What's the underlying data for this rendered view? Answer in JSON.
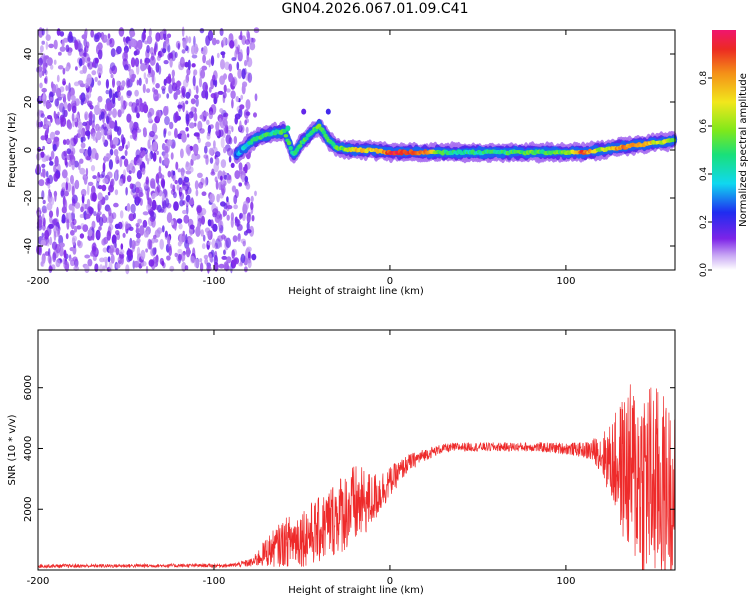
{
  "title": "GN04.2026.067.01.09.C41",
  "colors": {
    "spectrogram_low": "#7b22e6",
    "spectrogram_mid": "#19e07a",
    "spectrogram_high": "#e8202a",
    "snr_line": "#ee2a2a"
  },
  "chart_data": [
    {
      "type": "heatmap",
      "name": "spectrogram",
      "xlabel": "Height of straight line (km)",
      "ylabel": "Frequency (Hz)",
      "xlim": [
        -200,
        162
      ],
      "ylim": [
        -50,
        50
      ],
      "xticks": [
        "-200",
        "-100",
        "0",
        "100"
      ],
      "xtick_values": [
        -200,
        -100,
        0,
        100
      ],
      "yticks": [
        "-40",
        "-20",
        "0",
        "20",
        "40"
      ],
      "ytick_values": [
        -40,
        -20,
        0,
        20,
        40
      ],
      "noise_region_x": [
        -200,
        -78
      ],
      "signal_track": {
        "x": [
          -87,
          -78,
          -72,
          -66,
          -60,
          -55,
          -50,
          -45,
          -40,
          -35,
          -30,
          -20,
          -10,
          0,
          10,
          20,
          30,
          40,
          50,
          60,
          70,
          80,
          90,
          100,
          110,
          120,
          130,
          140,
          150,
          162
        ],
        "freq_hz": [
          -2,
          4,
          6,
          7,
          8,
          -2,
          3,
          7,
          10,
          4,
          1,
          0,
          0,
          -1,
          -1,
          -1,
          -1,
          -1,
          -1,
          -1,
          -1,
          -1,
          -1,
          -1,
          -1,
          0,
          1,
          2,
          3,
          4
        ],
        "amplitude": [
          0.3,
          0.45,
          0.5,
          0.45,
          0.5,
          0.45,
          0.5,
          0.5,
          0.55,
          0.55,
          0.5,
          0.75,
          0.7,
          0.9,
          0.95,
          0.85,
          0.5,
          0.45,
          0.45,
          0.45,
          0.5,
          0.55,
          0.5,
          0.55,
          0.9,
          0.6,
          0.8,
          0.85,
          0.7,
          0.6
        ]
      },
      "colorbar": {
        "label": "Normalized spectral amplitude",
        "range": [
          0,
          1
        ],
        "ticks": [
          "0.0",
          "0.2",
          "0.4",
          "0.6",
          "0.8"
        ],
        "tick_values": [
          0.0,
          0.2,
          0.4,
          0.6,
          0.8
        ]
      }
    },
    {
      "type": "line",
      "name": "snr",
      "xlabel": "Height of straight line (km)",
      "ylabel": "SNR (10 * v/v)",
      "xlim": [
        -200,
        162
      ],
      "ylim": [
        0,
        7900
      ],
      "xticks": [
        "-200",
        "-100",
        "0",
        "100"
      ],
      "xtick_values": [
        -200,
        -100,
        0,
        100
      ],
      "yticks": [
        "2000",
        "4000",
        "6000"
      ],
      "ytick_values": [
        2000,
        4000,
        6000
      ],
      "envelope": {
        "x": [
          -200,
          -90,
          -78,
          -70,
          -60,
          -50,
          -40,
          -30,
          -20,
          -10,
          0,
          10,
          20,
          30,
          40,
          60,
          80,
          100,
          110,
          118,
          125,
          135,
          145,
          155,
          162
        ],
        "mean": [
          130,
          150,
          250,
          600,
          900,
          1100,
          1300,
          1800,
          2100,
          2300,
          2900,
          3500,
          3800,
          4000,
          4050,
          4050,
          4050,
          4000,
          3950,
          3900,
          3600,
          3300,
          3000,
          2700,
          2600
        ],
        "spread": [
          60,
          60,
          150,
          500,
          800,
          1000,
          1100,
          1300,
          1400,
          900,
          500,
          300,
          200,
          150,
          150,
          150,
          150,
          200,
          250,
          500,
          1200,
          2800,
          3500,
          3200,
          2500
        ]
      }
    }
  ]
}
